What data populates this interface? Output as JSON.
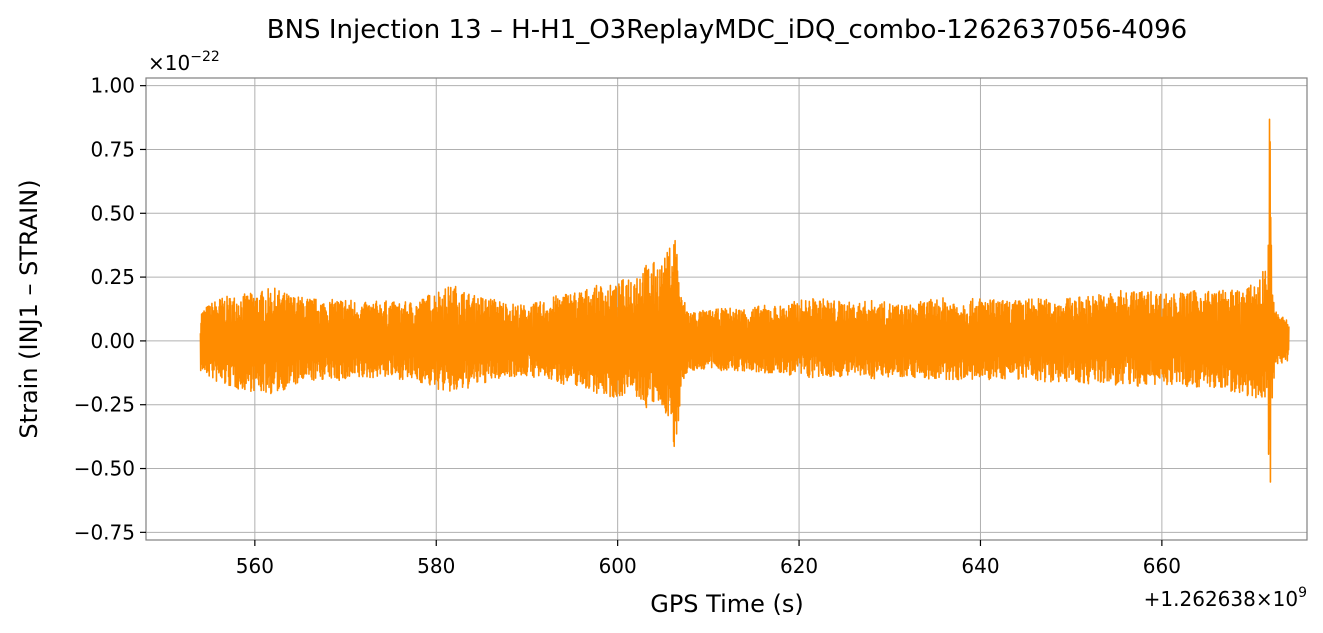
{
  "chart_data": {
    "type": "line",
    "title": "BNS Injection 13 – H-H1_O3ReplayMDC_iDQ_combo-1262637056-4096",
    "xlabel": "GPS Time (s)",
    "ylabel": "Strain (INJ1 – STRAIN)",
    "x_offset_label": "+1.262638×10",
    "x_offset_exponent": "9",
    "y_scale_label": "×10",
    "y_scale_exponent": "−22",
    "xlim": [
      548,
      676
    ],
    "ylim": [
      -0.78,
      1.03
    ],
    "x_ticks": [
      560,
      580,
      600,
      620,
      640,
      660
    ],
    "x_tick_labels": [
      "560",
      "580",
      "600",
      "620",
      "640",
      "660"
    ],
    "y_ticks": [
      -0.75,
      -0.5,
      -0.25,
      0.0,
      0.25,
      0.5,
      0.75,
      1.0
    ],
    "y_tick_labels": [
      "−0.75",
      "−0.50",
      "−0.25",
      "0.00",
      "0.25",
      "0.50",
      "0.75",
      "1.00"
    ],
    "grid": true,
    "series_color": "#ff8c00",
    "series": [
      {
        "x": [
          554.0,
          556.0,
          558.0,
          560.0,
          562.0,
          564.0,
          566.0,
          568.0,
          570.0,
          572.0,
          574.0,
          576.0,
          578.0,
          580.0,
          582.0,
          584.0,
          586.0,
          588.0,
          590.0,
          592.0,
          594.0,
          596.0,
          598.0,
          600.0,
          601.0,
          602.0,
          603.0,
          604.0,
          605.0,
          605.8,
          606.4,
          607.0,
          608.0,
          610.0,
          612.0,
          614.0,
          616.0,
          618.0,
          620.0,
          622.0,
          624.0,
          626.0,
          628.0,
          630.0,
          632.0,
          634.0,
          636.0,
          638.0,
          640.0,
          642.0,
          644.0,
          646.0,
          648.0,
          650.0,
          652.0,
          654.0,
          656.0,
          658.0,
          660.0,
          662.0,
          664.0,
          666.0,
          668.0,
          670.0,
          671.0,
          671.6,
          671.9,
          672.1,
          672.5,
          673.0,
          674.0
        ],
        "y_max": [
          0.12,
          0.17,
          0.18,
          0.19,
          0.21,
          0.18,
          0.17,
          0.16,
          0.17,
          0.15,
          0.16,
          0.15,
          0.16,
          0.2,
          0.22,
          0.18,
          0.17,
          0.15,
          0.14,
          0.16,
          0.19,
          0.2,
          0.22,
          0.22,
          0.26,
          0.28,
          0.3,
          0.31,
          0.31,
          0.38,
          0.44,
          0.18,
          0.12,
          0.12,
          0.13,
          0.13,
          0.14,
          0.14,
          0.16,
          0.17,
          0.16,
          0.15,
          0.16,
          0.15,
          0.14,
          0.16,
          0.17,
          0.16,
          0.17,
          0.16,
          0.16,
          0.17,
          0.16,
          0.17,
          0.18,
          0.19,
          0.2,
          0.2,
          0.19,
          0.19,
          0.2,
          0.2,
          0.2,
          0.22,
          0.26,
          0.32,
          0.96,
          0.28,
          0.12,
          0.1,
          0.09
        ],
        "y_min": [
          -0.12,
          -0.17,
          -0.19,
          -0.2,
          -0.21,
          -0.18,
          -0.16,
          -0.15,
          -0.16,
          -0.15,
          -0.14,
          -0.15,
          -0.16,
          -0.19,
          -0.21,
          -0.18,
          -0.16,
          -0.14,
          -0.14,
          -0.15,
          -0.17,
          -0.18,
          -0.21,
          -0.23,
          -0.2,
          -0.22,
          -0.27,
          -0.25,
          -0.28,
          -0.3,
          -0.52,
          -0.16,
          -0.12,
          -0.11,
          -0.12,
          -0.12,
          -0.13,
          -0.13,
          -0.14,
          -0.15,
          -0.14,
          -0.14,
          -0.15,
          -0.14,
          -0.14,
          -0.15,
          -0.16,
          -0.15,
          -0.16,
          -0.15,
          -0.15,
          -0.16,
          -0.16,
          -0.16,
          -0.17,
          -0.17,
          -0.18,
          -0.18,
          -0.17,
          -0.18,
          -0.18,
          -0.19,
          -0.2,
          -0.22,
          -0.23,
          -0.25,
          -0.71,
          -0.25,
          -0.1,
          -0.09,
          -0.08
        ]
      }
    ]
  }
}
